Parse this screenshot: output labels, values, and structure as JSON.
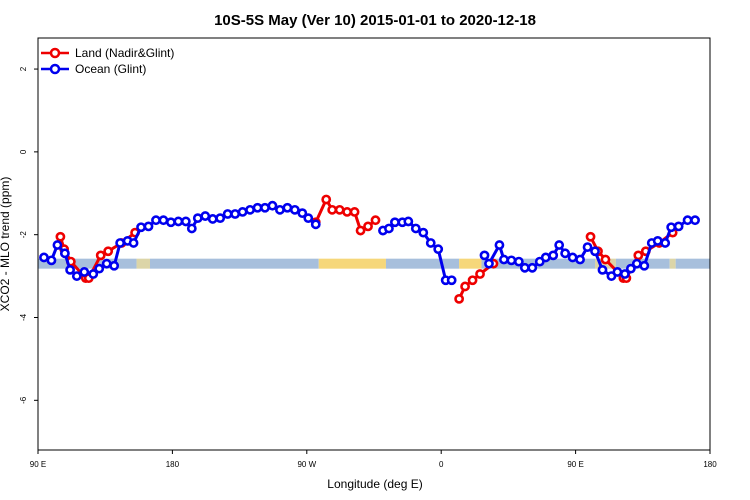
{
  "chart_data": {
    "type": "line",
    "title": "10S-5S May (Ver 10)   2015-01-01 to 2020-12-18",
    "xlabel": "Longitude (deg E)",
    "ylabel": "XCO2 - MLO trend (ppm)",
    "xlim": [
      90,
      540
    ],
    "ylim": [
      -7.2,
      2.75
    ],
    "x_ticks": [
      {
        "value": 90,
        "label": "90 E"
      },
      {
        "value": 180,
        "label": "180"
      },
      {
        "value": 270,
        "label": "90 W"
      },
      {
        "value": 360,
        "label": "0"
      },
      {
        "value": 450,
        "label": "90 E"
      },
      {
        "value": 540,
        "label": "180"
      }
    ],
    "y_ticks": [
      {
        "value": 2,
        "label": "2"
      },
      {
        "value": 0,
        "label": "0"
      },
      {
        "value": -2,
        "label": "-2"
      },
      {
        "value": -4,
        "label": "-4"
      },
      {
        "value": -6,
        "label": "-6"
      }
    ],
    "legend_position": "top-left",
    "surface_bar": {
      "y": -2.7,
      "segments": [
        {
          "from": 90,
          "to": 156,
          "color": "#a7bfdc"
        },
        {
          "from": 156,
          "to": 165,
          "color": "#dcd5a8"
        },
        {
          "from": 165,
          "to": 278,
          "color": "#a7bfdc"
        },
        {
          "from": 278,
          "to": 323,
          "color": "#f6d77a"
        },
        {
          "from": 323,
          "to": 372,
          "color": "#a7bfdc"
        },
        {
          "from": 372,
          "to": 387,
          "color": "#f6d77a"
        },
        {
          "from": 387,
          "to": 463,
          "color": "#a7bfdc"
        },
        {
          "from": 463,
          "to": 477,
          "color": "#dcd5a8"
        },
        {
          "from": 477,
          "to": 513,
          "color": "#a7bfdc"
        },
        {
          "from": 513,
          "to": 517,
          "color": "#dcd5a8"
        },
        {
          "from": 517,
          "to": 540,
          "color": "#a7bfdc"
        }
      ]
    },
    "series": [
      {
        "name": "Land (Nadir&Glint)",
        "color": "#ee0000",
        "points": [
          [
            105,
            -2.05
          ],
          [
            107.5,
            -2.35
          ],
          [
            112,
            -2.65
          ],
          [
            122,
            -3.05
          ],
          [
            124,
            -3.05
          ],
          [
            132,
            -2.5
          ],
          [
            137,
            -2.4
          ],
          [
            146,
            -2.2
          ],
          [
            155,
            -1.95
          ],
          [
            276,
            -1.7
          ],
          [
            283,
            -1.15
          ],
          [
            287,
            -1.4
          ],
          [
            292,
            -1.4
          ],
          [
            297,
            -1.45
          ],
          [
            302,
            -1.45
          ],
          [
            306,
            -1.9
          ],
          [
            311,
            -1.8
          ],
          [
            316,
            -1.65
          ],
          [
            372,
            -3.55
          ],
          [
            376,
            -3.25
          ],
          [
            381,
            -3.1
          ],
          [
            386,
            -2.95
          ],
          [
            395,
            -2.7
          ],
          [
            460,
            -2.05
          ],
          [
            465,
            -2.4
          ],
          [
            470,
            -2.6
          ],
          [
            482,
            -3.05
          ],
          [
            484,
            -3.05
          ],
          [
            492,
            -2.5
          ],
          [
            497,
            -2.4
          ],
          [
            506,
            -2.2
          ],
          [
            515,
            -1.95
          ]
        ]
      },
      {
        "name": "Ocean (Glint)",
        "color": "#0000ee",
        "segments": [
          [
            [
              94,
              -2.55
            ],
            [
              99,
              -2.62
            ],
            [
              103,
              -2.25
            ],
            [
              108,
              -2.45
            ],
            [
              111.5,
              -2.85
            ],
            [
              116,
              -3.0
            ],
            [
              121,
              -2.9
            ],
            [
              127,
              -2.95
            ],
            [
              131,
              -2.82
            ],
            [
              136,
              -2.7
            ],
            [
              141,
              -2.75
            ],
            [
              145,
              -2.2
            ],
            [
              150,
              -2.15
            ],
            [
              154,
              -2.2
            ],
            [
              159,
              -1.82
            ],
            [
              164,
              -1.8
            ],
            [
              169,
              -1.65
            ],
            [
              174,
              -1.65
            ],
            [
              179,
              -1.7
            ],
            [
              184,
              -1.68
            ],
            [
              189,
              -1.68
            ],
            [
              193,
              -1.85
            ],
            [
              197,
              -1.6
            ],
            [
              202,
              -1.55
            ],
            [
              207,
              -1.62
            ],
            [
              212,
              -1.6
            ],
            [
              217,
              -1.5
            ],
            [
              222,
              -1.5
            ],
            [
              227,
              -1.45
            ],
            [
              232,
              -1.4
            ],
            [
              237,
              -1.35
            ],
            [
              242,
              -1.35
            ],
            [
              247,
              -1.3
            ],
            [
              252,
              -1.4
            ],
            [
              257,
              -1.35
            ],
            [
              262,
              -1.4
            ],
            [
              267,
              -1.48
            ],
            [
              271,
              -1.6
            ],
            [
              276,
              -1.75
            ]
          ],
          [
            [
              321,
              -1.9
            ],
            [
              325,
              -1.85
            ],
            [
              329,
              -1.7
            ],
            [
              334,
              -1.7
            ],
            [
              338,
              -1.68
            ],
            [
              343,
              -1.85
            ],
            [
              348,
              -1.95
            ],
            [
              353,
              -2.2
            ],
            [
              358,
              -2.35
            ],
            [
              363,
              -3.1
            ],
            [
              367,
              -3.1
            ]
          ],
          [
            [
              389,
              -2.5
            ],
            [
              392,
              -2.7
            ],
            [
              399,
              -2.25
            ],
            [
              402,
              -2.6
            ],
            [
              407,
              -2.62
            ],
            [
              412,
              -2.65
            ],
            [
              416,
              -2.8
            ],
            [
              421,
              -2.8
            ],
            [
              426,
              -2.65
            ],
            [
              430,
              -2.55
            ],
            [
              435,
              -2.5
            ],
            [
              439,
              -2.25
            ],
            [
              443,
              -2.45
            ],
            [
              448,
              -2.55
            ],
            [
              453,
              -2.6
            ],
            [
              458,
              -2.3
            ],
            [
              463,
              -2.4
            ],
            [
              468,
              -2.85
            ],
            [
              474,
              -3.0
            ],
            [
              478,
              -2.9
            ],
            [
              483,
              -2.95
            ],
            [
              487,
              -2.82
            ],
            [
              491,
              -2.7
            ],
            [
              496,
              -2.75
            ],
            [
              501,
              -2.2
            ],
            [
              505,
              -2.15
            ],
            [
              510,
              -2.2
            ],
            [
              514,
              -1.82
            ],
            [
              519,
              -1.8
            ],
            [
              525,
              -1.65
            ],
            [
              530,
              -1.65
            ]
          ]
        ]
      }
    ]
  }
}
